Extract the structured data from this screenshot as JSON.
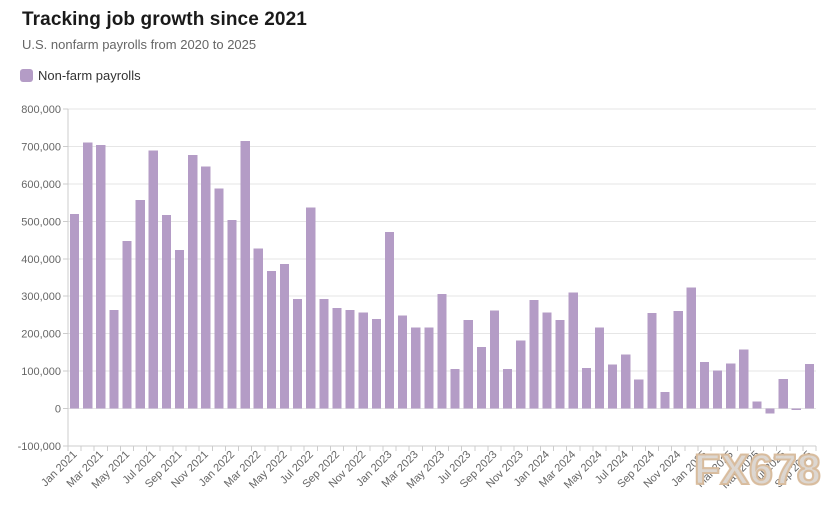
{
  "header": {
    "title": "Tracking job growth since 2021",
    "subtitle": "U.S. nonfarm payrolls from 2020 to 2025"
  },
  "legend": {
    "label": "Non-farm payrolls",
    "swatch_color": "#b49cc6"
  },
  "watermark": "FX678",
  "colors": {
    "bar": "#b49cc6",
    "gridline": "#e6e6e6",
    "axis_line": "#cccccc",
    "tick": "#cccccc",
    "axis_label": "#666666"
  },
  "chart_data": {
    "type": "bar",
    "title": "Tracking job growth since 2021",
    "subtitle": "U.S. nonfarm payrolls from 2020 to 2025",
    "series_name": "Non-farm payrolls",
    "x": [
      "Jan 2021",
      "Feb 2021",
      "Mar 2021",
      "Apr 2021",
      "May 2021",
      "Jun 2021",
      "Jul 2021",
      "Aug 2021",
      "Sep 2021",
      "Oct 2021",
      "Nov 2021",
      "Dec 2021",
      "Jan 2022",
      "Feb 2022",
      "Mar 2022",
      "Apr 2022",
      "May 2022",
      "Jun 2022",
      "Jul 2022",
      "Aug 2022",
      "Sep 2022",
      "Oct 2022",
      "Nov 2022",
      "Dec 2022",
      "Jan 2023",
      "Feb 2023",
      "Mar 2023",
      "Apr 2023",
      "May 2023",
      "Jun 2023",
      "Jul 2023",
      "Aug 2023",
      "Sep 2023",
      "Oct 2023",
      "Nov 2023",
      "Dec 2023",
      "Jan 2024",
      "Feb 2024",
      "Mar 2024",
      "Apr 2024",
      "May 2024",
      "Jun 2024",
      "Jul 2024",
      "Aug 2024",
      "Sep 2024",
      "Oct 2024",
      "Nov 2024",
      "Dec 2024",
      "Jan 2025",
      "Feb 2025",
      "Mar 2025",
      "Apr 2025",
      "May 2025",
      "Jun 2025",
      "Jul 2025",
      "Aug 2025",
      "Sep 2025"
    ],
    "values": [
      520000,
      710000,
      704000,
      263000,
      447000,
      557000,
      689000,
      517000,
      424000,
      677000,
      647000,
      588000,
      504000,
      714000,
      428000,
      368000,
      386000,
      293000,
      537000,
      292000,
      269000,
      263000,
      256000,
      239000,
      472000,
      248000,
      217000,
      217000,
      306000,
      105000,
      236000,
      165000,
      262000,
      105000,
      182000,
      290000,
      256000,
      236000,
      310000,
      108000,
      216000,
      118000,
      144000,
      78000,
      255000,
      44000,
      261000,
      323000,
      125000,
      102000,
      120000,
      158000,
      19000,
      -13000,
      79000,
      -4000,
      119000
    ],
    "y_tick_labels": [
      "800,000",
      "700,000",
      "600,000",
      "500,000",
      "400,000",
      "300,000",
      "200,000",
      "100,000",
      "0",
      "-100,000"
    ],
    "ylim": [
      -100000,
      800000
    ],
    "y_tick_interval": 100000,
    "x_label_every": 2,
    "x_label_rotation": -45,
    "grid": true,
    "legend_position": "top-left"
  }
}
